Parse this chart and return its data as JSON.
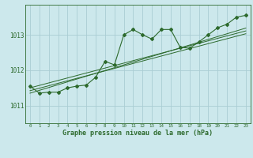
{
  "title": "Graphe pression niveau de la mer (hPa)",
  "background_color": "#cce8ec",
  "grid_color": "#aacdd4",
  "line_color": "#2d6a2d",
  "xlim": [
    -0.5,
    23.5
  ],
  "ylim": [
    1010.5,
    1013.85
  ],
  "yticks": [
    1011,
    1012,
    1013
  ],
  "xticks": [
    0,
    1,
    2,
    3,
    4,
    5,
    6,
    7,
    8,
    9,
    10,
    11,
    12,
    13,
    14,
    15,
    16,
    17,
    18,
    19,
    20,
    21,
    22,
    23
  ],
  "hours": [
    0,
    1,
    2,
    3,
    4,
    5,
    6,
    7,
    8,
    9,
    10,
    11,
    12,
    13,
    14,
    15,
    16,
    17,
    18,
    19,
    20,
    21,
    22,
    23
  ],
  "main_line": [
    1011.55,
    1011.35,
    1011.38,
    1011.38,
    1011.5,
    1011.55,
    1011.58,
    1011.8,
    1012.25,
    1012.15,
    1013.0,
    1013.15,
    1013.0,
    1012.88,
    1013.15,
    1013.15,
    1012.65,
    1012.62,
    1012.8,
    1013.0,
    1013.2,
    1013.3,
    1013.5,
    1013.55
  ],
  "trend1": [
    1011.42,
    1011.49,
    1011.56,
    1011.63,
    1011.7,
    1011.77,
    1011.84,
    1011.91,
    1011.98,
    1012.05,
    1012.12,
    1012.19,
    1012.26,
    1012.33,
    1012.4,
    1012.47,
    1012.54,
    1012.61,
    1012.68,
    1012.75,
    1012.82,
    1012.89,
    1012.96,
    1013.03
  ],
  "trend2": [
    1011.35,
    1011.43,
    1011.51,
    1011.59,
    1011.67,
    1011.75,
    1011.83,
    1011.91,
    1011.99,
    1012.07,
    1012.15,
    1012.23,
    1012.31,
    1012.39,
    1012.47,
    1012.55,
    1012.63,
    1012.71,
    1012.79,
    1012.87,
    1012.95,
    1013.03,
    1013.11,
    1013.19
  ],
  "trend3": [
    1011.5,
    1011.57,
    1011.64,
    1011.71,
    1011.78,
    1011.85,
    1011.92,
    1011.99,
    1012.06,
    1012.13,
    1012.2,
    1012.27,
    1012.34,
    1012.41,
    1012.48,
    1012.55,
    1012.62,
    1012.69,
    1012.76,
    1012.83,
    1012.9,
    1012.97,
    1013.04,
    1013.11
  ],
  "figsize": [
    3.2,
    2.0
  ],
  "dpi": 100
}
